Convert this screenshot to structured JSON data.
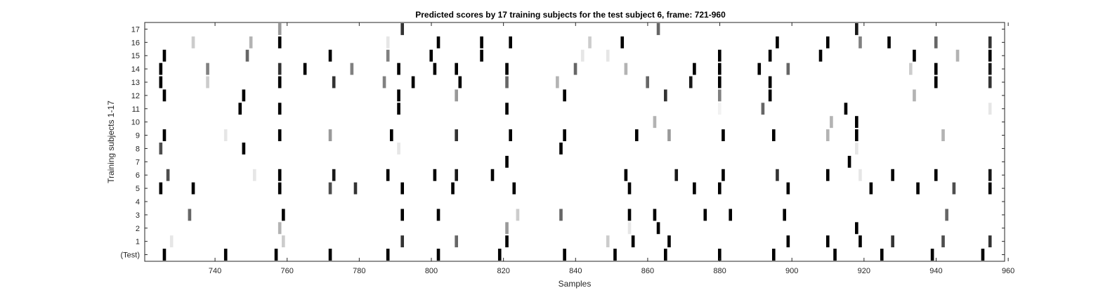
{
  "chart_data": {
    "type": "heatmap",
    "title": "Predicted scores by 17 training subjects for the test subject 6, frame: 721-960",
    "xlabel": "Samples",
    "ylabel": "Training subjects 1-17",
    "xlim": [
      720.5,
      959
    ],
    "x_ticks": [
      740,
      760,
      780,
      800,
      820,
      840,
      860,
      880,
      900,
      920,
      940,
      960
    ],
    "rows": [
      "17",
      "16",
      "15",
      "14",
      "13",
      "12",
      "11",
      "10",
      "9",
      "8",
      "7",
      "6",
      "5",
      "4",
      "3",
      "2",
      "1",
      "(Test)"
    ],
    "colormap": "gray, 1 = black, 0 = white",
    "grid": false,
    "legend": "none",
    "series": [
      {
        "row": "17",
        "points": [
          [
            758,
            0.4
          ],
          [
            792,
            0.8
          ],
          [
            863,
            0.6
          ],
          [
            918,
            0.9
          ]
        ]
      },
      {
        "row": "16",
        "points": [
          [
            734,
            0.2
          ],
          [
            750,
            0.3
          ],
          [
            758,
            1.0
          ],
          [
            788,
            0.1
          ],
          [
            802,
            1.0
          ],
          [
            814,
            1.0
          ],
          [
            822,
            1.0
          ],
          [
            844,
            0.2
          ],
          [
            853,
            1.0
          ],
          [
            896,
            1.0
          ],
          [
            910,
            1.0
          ],
          [
            919,
            0.5
          ],
          [
            927,
            1.0
          ],
          [
            940,
            0.6
          ],
          [
            955,
            0.8
          ]
        ]
      },
      {
        "row": "15",
        "points": [
          [
            726,
            1.0
          ],
          [
            749,
            0.6
          ],
          [
            772,
            1.0
          ],
          [
            788,
            0.5
          ],
          [
            800,
            1.0
          ],
          [
            814,
            1.0
          ],
          [
            842,
            0.1
          ],
          [
            849,
            0.1
          ],
          [
            880,
            1.0
          ],
          [
            894,
            1.0
          ],
          [
            908,
            1.0
          ],
          [
            934,
            1.0
          ],
          [
            946,
            0.3
          ],
          [
            955,
            1.0
          ]
        ]
      },
      {
        "row": "14",
        "points": [
          [
            725,
            1.0
          ],
          [
            738,
            0.5
          ],
          [
            758,
            0.8
          ],
          [
            765,
            1.0
          ],
          [
            778,
            0.5
          ],
          [
            791,
            1.0
          ],
          [
            801,
            1.0
          ],
          [
            807,
            1.0
          ],
          [
            821,
            1.0
          ],
          [
            840,
            0.6
          ],
          [
            854,
            0.3
          ],
          [
            873,
            1.0
          ],
          [
            880,
            1.0
          ],
          [
            891,
            1.0
          ],
          [
            899,
            0.6
          ],
          [
            933,
            0.2
          ],
          [
            940,
            1.0
          ],
          [
            955,
            0.9
          ]
        ]
      },
      {
        "row": "13",
        "points": [
          [
            725,
            1.0
          ],
          [
            738,
            0.2
          ],
          [
            758,
            1.0
          ],
          [
            773,
            0.8
          ],
          [
            787,
            0.5
          ],
          [
            795,
            1.0
          ],
          [
            808,
            1.0
          ],
          [
            821,
            0.6
          ],
          [
            835,
            0.3
          ],
          [
            860,
            0.6
          ],
          [
            872,
            0.9
          ],
          [
            880,
            1.0
          ],
          [
            894,
            1.0
          ],
          [
            940,
            1.0
          ],
          [
            955,
            0.8
          ]
        ]
      },
      {
        "row": "12",
        "points": [
          [
            726,
            1.0
          ],
          [
            748,
            1.0
          ],
          [
            791,
            1.0
          ],
          [
            807,
            0.4
          ],
          [
            837,
            1.0
          ],
          [
            865,
            0.8
          ],
          [
            880,
            0.5
          ],
          [
            894,
            1.0
          ],
          [
            934,
            0.3
          ]
        ]
      },
      {
        "row": "11",
        "points": [
          [
            747,
            1.0
          ],
          [
            758,
            1.0
          ],
          [
            791,
            1.0
          ],
          [
            821,
            1.0
          ],
          [
            880,
            0.05
          ],
          [
            892,
            0.6
          ],
          [
            915,
            1.0
          ],
          [
            955,
            0.1
          ]
        ]
      },
      {
        "row": "10",
        "points": [
          [
            862,
            0.3
          ],
          [
            911,
            0.3
          ],
          [
            918,
            1.0
          ]
        ]
      },
      {
        "row": "9",
        "points": [
          [
            726,
            1.0
          ],
          [
            743,
            0.1
          ],
          [
            758,
            1.0
          ],
          [
            772,
            0.4
          ],
          [
            789,
            1.0
          ],
          [
            807,
            0.8
          ],
          [
            822,
            1.0
          ],
          [
            837,
            1.0
          ],
          [
            857,
            1.0
          ],
          [
            866,
            0.4
          ],
          [
            881,
            1.0
          ],
          [
            895,
            1.0
          ],
          [
            910,
            0.3
          ],
          [
            918,
            1.0
          ],
          [
            942,
            0.3
          ]
        ]
      },
      {
        "row": "8",
        "points": [
          [
            725,
            0.7
          ],
          [
            748,
            1.0
          ],
          [
            791,
            0.1
          ],
          [
            836,
            1.0
          ],
          [
            918,
            0.1
          ]
        ]
      },
      {
        "row": "7",
        "points": [
          [
            821,
            1.0
          ],
          [
            916,
            1.0
          ]
        ]
      },
      {
        "row": "6",
        "points": [
          [
            727,
            0.7
          ],
          [
            751,
            0.1
          ],
          [
            758,
            1.0
          ],
          [
            773,
            0.9
          ],
          [
            788,
            1.0
          ],
          [
            801,
            1.0
          ],
          [
            807,
            0.9
          ],
          [
            817,
            1.0
          ],
          [
            854,
            1.0
          ],
          [
            868,
            0.9
          ],
          [
            881,
            1.0
          ],
          [
            896,
            0.8
          ],
          [
            910,
            1.0
          ],
          [
            919,
            0.1
          ],
          [
            928,
            1.0
          ],
          [
            940,
            1.0
          ],
          [
            955,
            0.9
          ]
        ]
      },
      {
        "row": "5",
        "points": [
          [
            725,
            1.0
          ],
          [
            734,
            1.0
          ],
          [
            758,
            1.0
          ],
          [
            772,
            0.7
          ],
          [
            779,
            0.8
          ],
          [
            792,
            1.0
          ],
          [
            806,
            1.0
          ],
          [
            823,
            1.0
          ],
          [
            855,
            1.0
          ],
          [
            873,
            1.0
          ],
          [
            880,
            1.0
          ],
          [
            899,
            1.0
          ],
          [
            922,
            1.0
          ],
          [
            935,
            1.0
          ],
          [
            945,
            0.7
          ],
          [
            955,
            1.0
          ]
        ]
      },
      {
        "row": "4",
        "points": []
      },
      {
        "row": "3",
        "points": [
          [
            733,
            0.6
          ],
          [
            759,
            1.0
          ],
          [
            792,
            1.0
          ],
          [
            802,
            1.0
          ],
          [
            824,
            0.2
          ],
          [
            836,
            0.6
          ],
          [
            855,
            1.0
          ],
          [
            862,
            1.0
          ],
          [
            876,
            1.0
          ],
          [
            883,
            1.0
          ],
          [
            898,
            1.0
          ],
          [
            943,
            0.6
          ]
        ]
      },
      {
        "row": "2",
        "points": [
          [
            758,
            0.3
          ],
          [
            821,
            0.4
          ],
          [
            855,
            0.1
          ],
          [
            863,
            1.0
          ],
          [
            918,
            1.0
          ]
        ]
      },
      {
        "row": "1",
        "points": [
          [
            728,
            0.1
          ],
          [
            759,
            0.2
          ],
          [
            792,
            0.8
          ],
          [
            807,
            0.6
          ],
          [
            821,
            1.0
          ],
          [
            849,
            0.2
          ],
          [
            856,
            1.0
          ],
          [
            866,
            1.0
          ],
          [
            899,
            1.0
          ],
          [
            910,
            1.0
          ],
          [
            919,
            1.0
          ],
          [
            928,
            0.8
          ],
          [
            942,
            0.7
          ],
          [
            955,
            0.8
          ]
        ]
      },
      {
        "row": "(Test)",
        "points": [
          [
            726,
            1.0
          ],
          [
            743,
            1.0
          ],
          [
            757,
            1.0
          ],
          [
            772,
            1.0
          ],
          [
            788,
            1.0
          ],
          [
            802,
            1.0
          ],
          [
            819,
            1.0
          ],
          [
            837,
            1.0
          ],
          [
            851,
            1.0
          ],
          [
            865,
            1.0
          ],
          [
            880,
            1.0
          ],
          [
            895,
            1.0
          ],
          [
            912,
            1.0
          ],
          [
            925,
            1.0
          ],
          [
            939,
            1.0
          ],
          [
            953,
            1.0
          ]
        ]
      }
    ]
  }
}
